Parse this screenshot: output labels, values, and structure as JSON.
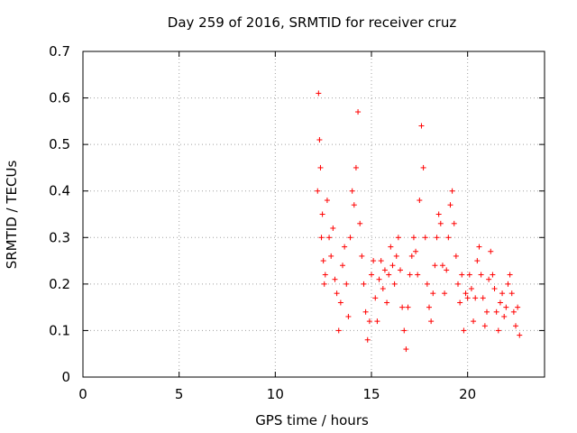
{
  "chart_data": {
    "type": "scatter",
    "title": "Day 259 of 2016, SRMTID for receiver cruz",
    "xlabel": "GPS time / hours",
    "ylabel": "SRMTID / TECUs",
    "xlim": [
      0,
      24
    ],
    "ylim": [
      0,
      0.7
    ],
    "xticks": [
      0,
      5,
      10,
      15,
      20
    ],
    "xtick_labels": [
      "0",
      "5",
      "10",
      "15",
      "20"
    ],
    "yticks": [
      0,
      0.1,
      0.2,
      0.3,
      0.4,
      0.5,
      0.6,
      0.7
    ],
    "ytick_labels": [
      "0",
      "0.1",
      "0.2",
      "0.3",
      "0.4",
      "0.5",
      "0.6",
      "0.7"
    ],
    "grid": true,
    "marker": "+",
    "series_color": "#ff0000",
    "series": [
      {
        "x": [
          12.2,
          12.25,
          12.3,
          12.35,
          12.4,
          12.45,
          12.5,
          12.55,
          12.6,
          12.7,
          12.8,
          12.9,
          13.0,
          13.1,
          13.2,
          13.3,
          13.4,
          13.5,
          13.6,
          13.7,
          13.8,
          13.9,
          14.0,
          14.1,
          14.2,
          14.3,
          14.4,
          14.5,
          14.6,
          14.7,
          14.8,
          14.9,
          15.0,
          15.1,
          15.2,
          15.3,
          15.4,
          15.5,
          15.6,
          15.7,
          15.8,
          15.9,
          16.0,
          16.1,
          16.2,
          16.3,
          16.4,
          16.5,
          16.6,
          16.7,
          16.8,
          16.9,
          17.0,
          17.1,
          17.2,
          17.3,
          17.4,
          17.5,
          17.6,
          17.7,
          17.8,
          17.9,
          18.0,
          18.1,
          18.2,
          18.3,
          18.4,
          18.5,
          18.6,
          18.7,
          18.8,
          18.9,
          19.0,
          19.1,
          19.2,
          19.3,
          19.4,
          19.5,
          19.6,
          19.7,
          19.8,
          19.9,
          20.0,
          20.1,
          20.2,
          20.3,
          20.4,
          20.5,
          20.6,
          20.7,
          20.8,
          20.9,
          21.0,
          21.1,
          21.2,
          21.3,
          21.4,
          21.5,
          21.6,
          21.7,
          21.8,
          21.9,
          22.0,
          22.1,
          22.2,
          22.3,
          22.4,
          22.5,
          22.6,
          22.7
        ],
        "y": [
          0.4,
          0.61,
          0.51,
          0.45,
          0.3,
          0.35,
          0.25,
          0.2,
          0.22,
          0.38,
          0.3,
          0.26,
          0.32,
          0.21,
          0.18,
          0.1,
          0.16,
          0.24,
          0.28,
          0.2,
          0.13,
          0.3,
          0.4,
          0.37,
          0.45,
          0.57,
          0.33,
          0.26,
          0.2,
          0.14,
          0.08,
          0.12,
          0.22,
          0.25,
          0.17,
          0.12,
          0.21,
          0.25,
          0.19,
          0.23,
          0.16,
          0.22,
          0.28,
          0.24,
          0.2,
          0.26,
          0.3,
          0.23,
          0.15,
          0.1,
          0.06,
          0.15,
          0.22,
          0.26,
          0.3,
          0.27,
          0.22,
          0.38,
          0.54,
          0.45,
          0.3,
          0.2,
          0.15,
          0.12,
          0.18,
          0.24,
          0.3,
          0.35,
          0.33,
          0.24,
          0.18,
          0.23,
          0.3,
          0.37,
          0.4,
          0.33,
          0.26,
          0.2,
          0.16,
          0.22,
          0.1,
          0.18,
          0.17,
          0.22,
          0.19,
          0.12,
          0.17,
          0.25,
          0.28,
          0.22,
          0.17,
          0.11,
          0.14,
          0.21,
          0.27,
          0.22,
          0.19,
          0.14,
          0.1,
          0.16,
          0.18,
          0.13,
          0.15,
          0.2,
          0.22,
          0.18,
          0.14,
          0.11,
          0.15,
          0.09
        ]
      }
    ]
  }
}
